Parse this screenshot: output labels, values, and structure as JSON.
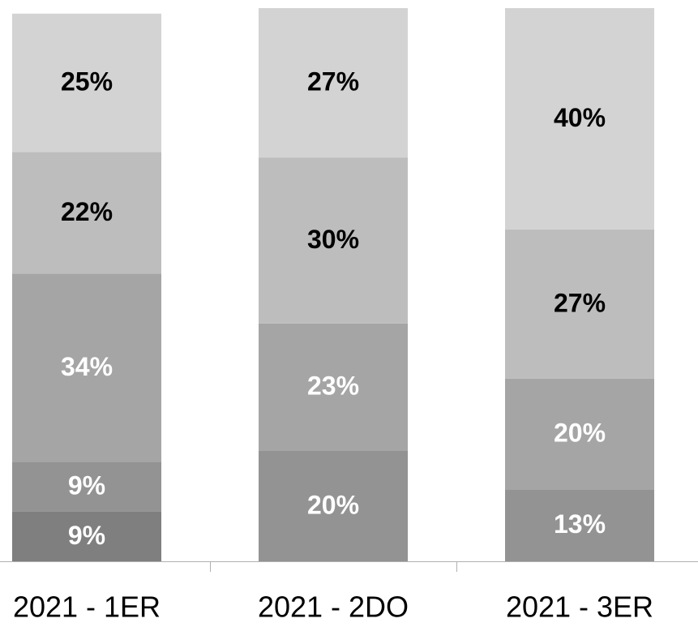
{
  "chart_data": {
    "type": "stacked_bar",
    "categories": [
      "2021 - 1ER",
      "2021 - 2DO",
      "2021 - 3ER"
    ],
    "ylim": [
      0,
      100
    ],
    "series": [
      {
        "color": "#7f7f7f",
        "label_color": "#ffffff",
        "values": [
          9,
          null,
          null
        ],
        "value_labels": [
          "9%",
          null,
          null
        ]
      },
      {
        "color": "#939393",
        "label_color": "#ffffff",
        "values": [
          9,
          20,
          13
        ],
        "value_labels": [
          "9%",
          "20%",
          "13%"
        ]
      },
      {
        "color": "#a5a5a5",
        "label_color": "#ffffff",
        "values": [
          34,
          23,
          20
        ],
        "value_labels": [
          "34%",
          "23%",
          "20%"
        ]
      },
      {
        "color": "#bdbdbd",
        "label_color": "#000000",
        "values": [
          22,
          30,
          27
        ],
        "value_labels": [
          "22%",
          "30%",
          "27%"
        ]
      },
      {
        "color": "#d3d3d3",
        "label_color": "#000000",
        "values": [
          25,
          27,
          40
        ],
        "value_labels": [
          "25%",
          "27%",
          "40%"
        ]
      }
    ]
  }
}
